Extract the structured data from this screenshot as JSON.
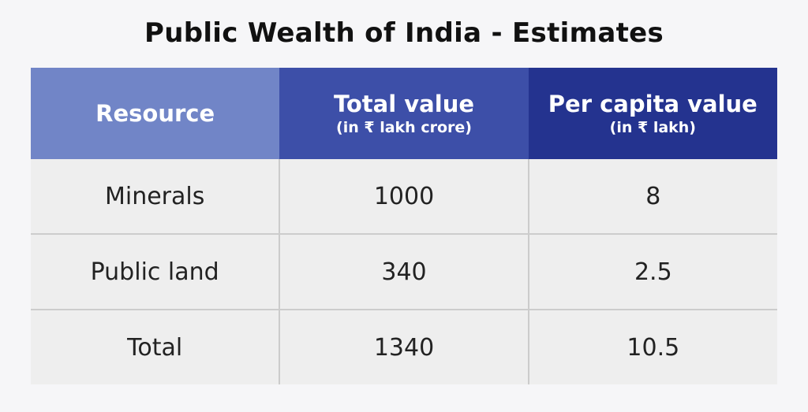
{
  "chart_data": {
    "type": "table",
    "title": "Public Wealth of India - Estimates",
    "header_colors": [
      "#7185c7",
      "#3d4fa8",
      "#24338f"
    ],
    "columns": [
      {
        "label": "Resource",
        "sub": ""
      },
      {
        "label": "Total value",
        "sub": "(in ₹ lakh crore)"
      },
      {
        "label": "Per capita value",
        "sub": "(in ₹ lakh)"
      }
    ],
    "rows": [
      [
        "Minerals",
        "1000",
        "8"
      ],
      [
        "Public land",
        "340",
        "2.5"
      ],
      [
        "Total",
        "1340",
        "10.5"
      ]
    ]
  }
}
